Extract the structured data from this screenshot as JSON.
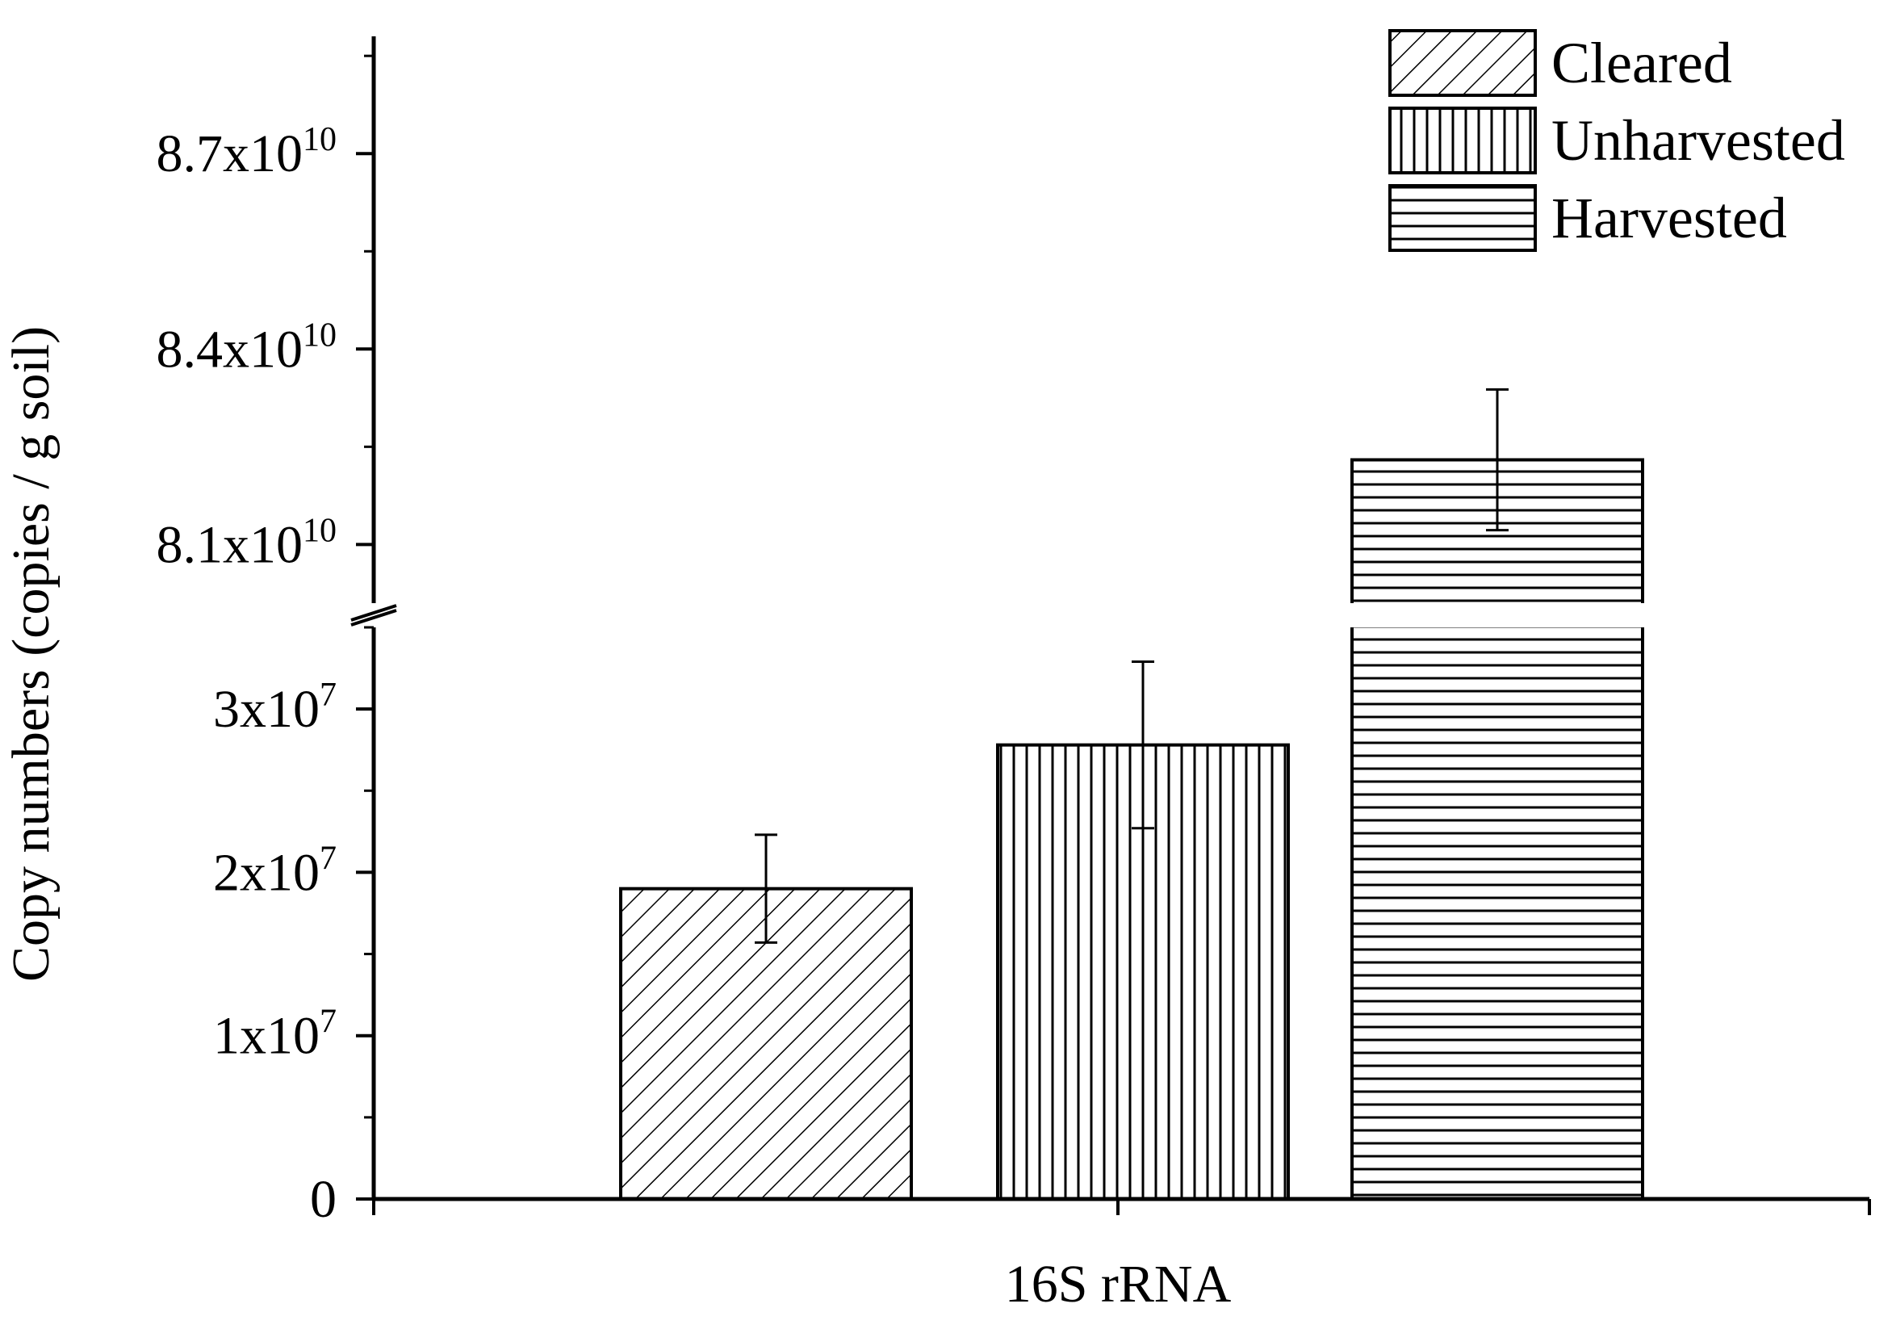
{
  "chart_data": {
    "type": "bar",
    "title": "",
    "xlabel": "16S rRNA",
    "ylabel": "Copy numbers (copies / g soil)",
    "categories": [
      "16S rRNA"
    ],
    "axis_break": true,
    "y_segments": [
      {
        "range": [
          0,
          35000000
        ],
        "ticks": [
          {
            "value": 0,
            "base": "0",
            "exp": ""
          },
          {
            "value": 10000000,
            "base": "1x10",
            "exp": "7"
          },
          {
            "value": 20000000,
            "base": "2x10",
            "exp": "7"
          },
          {
            "value": 30000000,
            "base": "3x10",
            "exp": "7"
          }
        ]
      },
      {
        "range": [
          80100000000,
          88800000000
        ],
        "ticks": [
          {
            "value": 81000000000,
            "base": "8.1x10",
            "exp": "10"
          },
          {
            "value": 84000000000,
            "base": "8.4x10",
            "exp": "10"
          },
          {
            "value": 87000000000,
            "base": "8.7x10",
            "exp": "10"
          }
        ]
      }
    ],
    "series": [
      {
        "name": "Cleared",
        "pattern": "diagonal",
        "values": [
          19000000
        ],
        "error": [
          3300000
        ]
      },
      {
        "name": "Unharvested",
        "pattern": "vertical",
        "values": [
          27800000
        ],
        "error": [
          5100000
        ]
      },
      {
        "name": "Harvested",
        "pattern": "horizontal",
        "values": [
          82300000000
        ],
        "error": [
          1080000000
        ]
      }
    ],
    "legend_position": "top-right",
    "grid": false
  }
}
